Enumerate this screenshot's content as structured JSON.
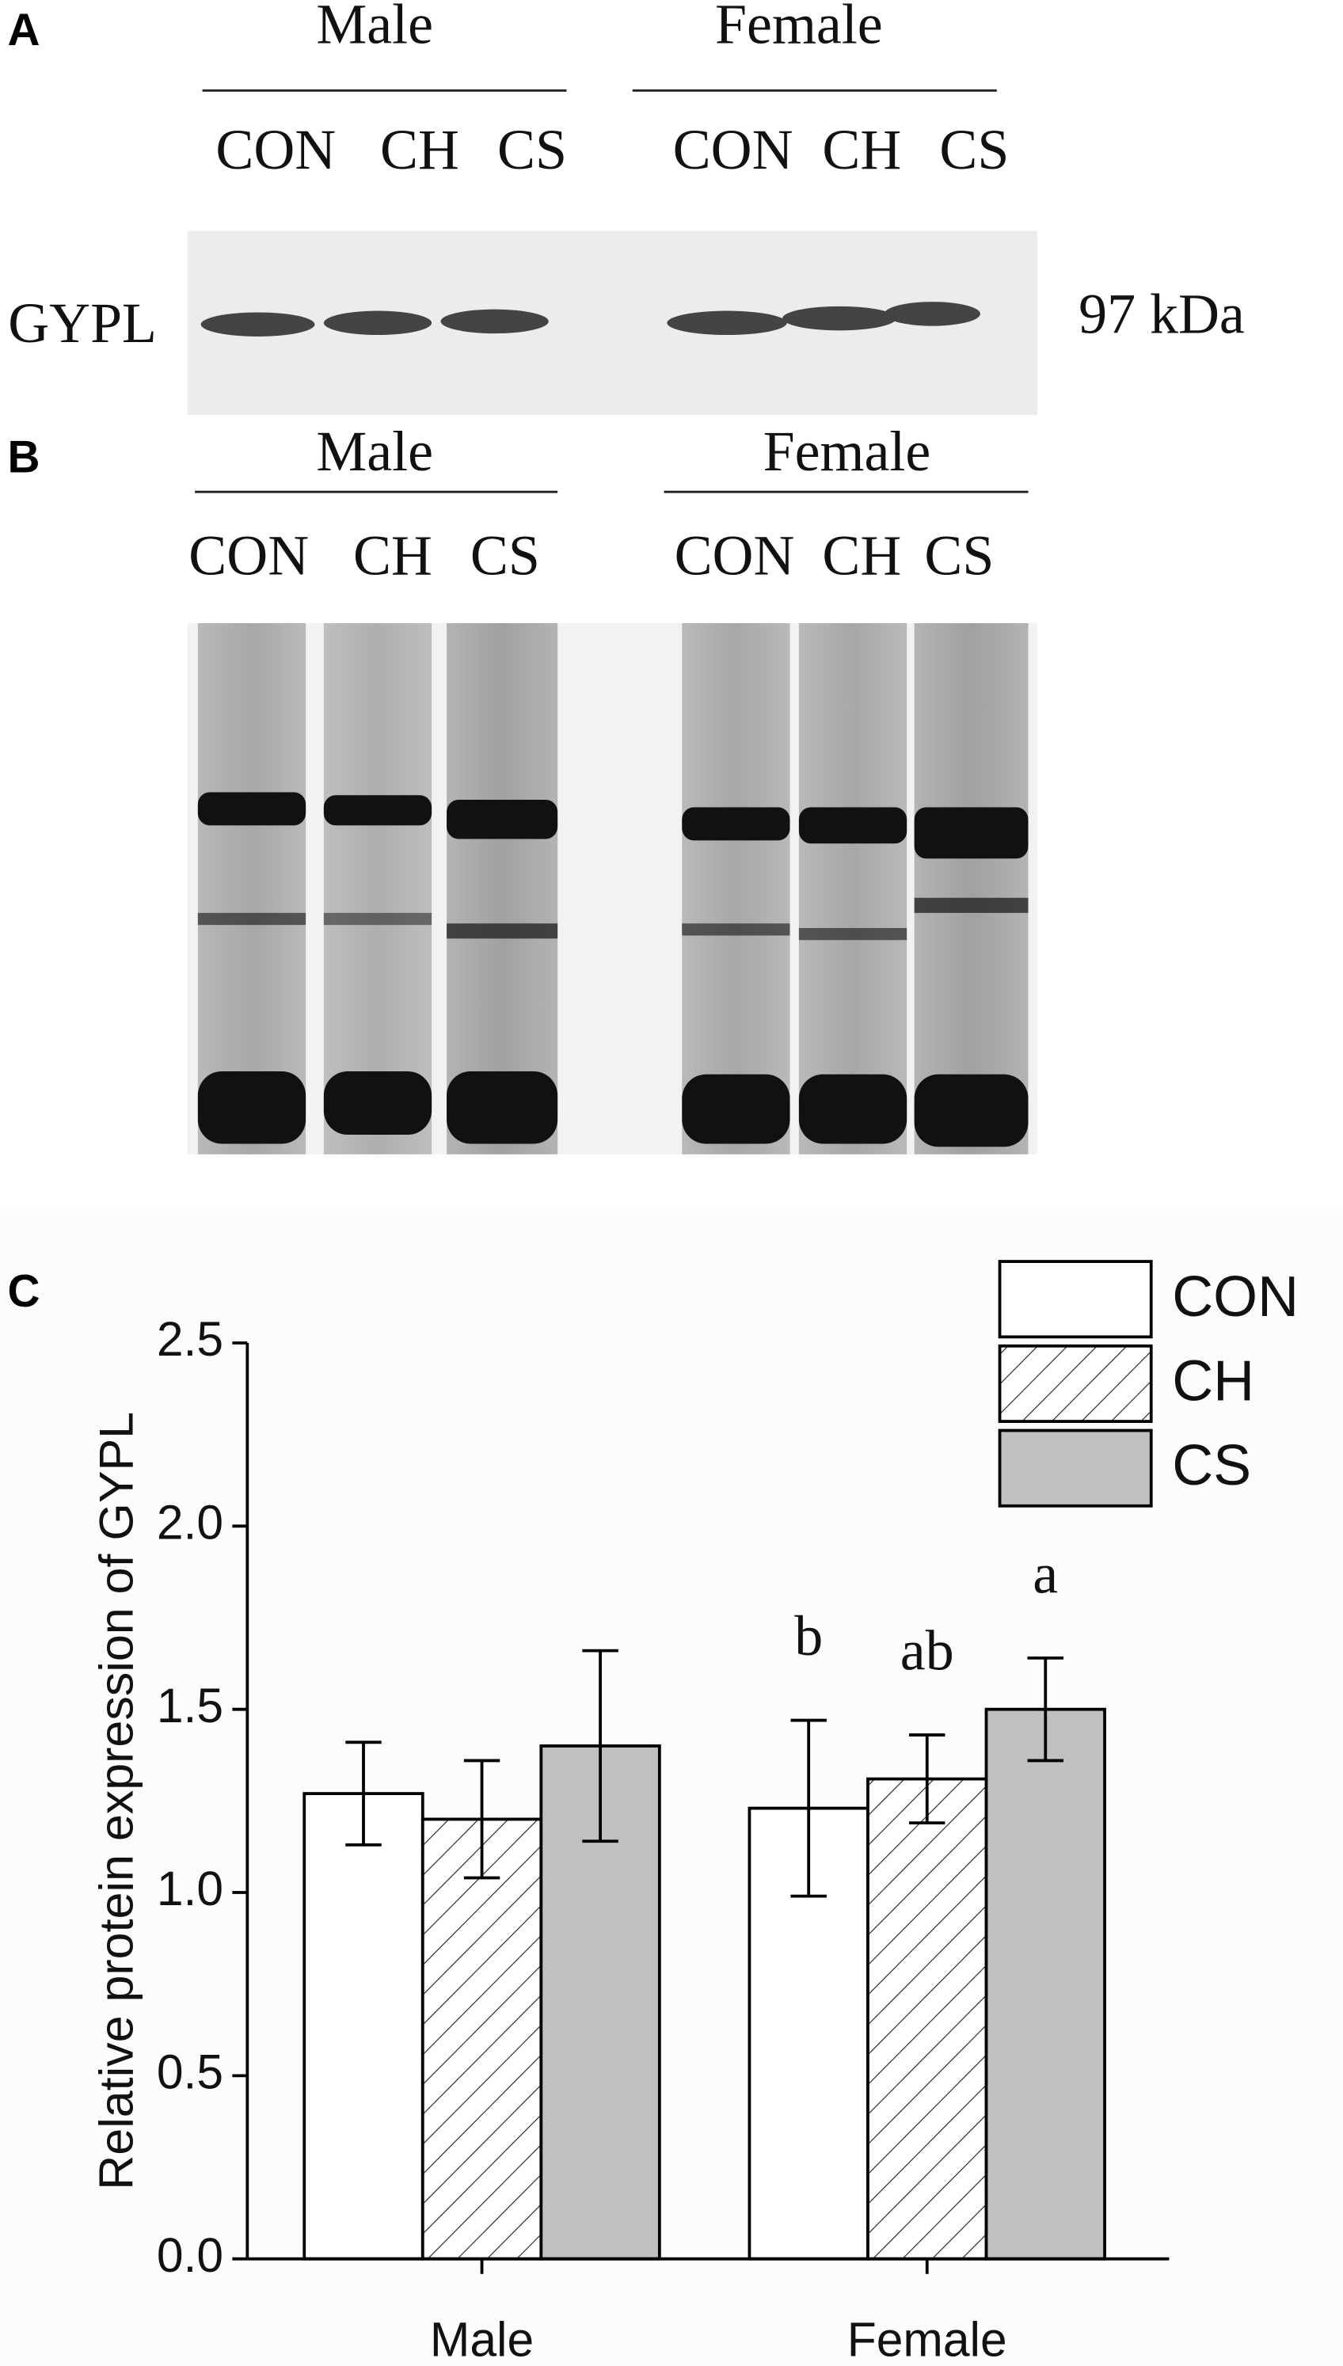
{
  "panels": {
    "a": {
      "label": "A",
      "groups": [
        "Male",
        "Female"
      ],
      "lanes": [
        "CON",
        "CH",
        "CS",
        "CON",
        "CH",
        "CS"
      ],
      "protein": "GYPL",
      "size": "97 kDa"
    },
    "b": {
      "label": "B",
      "groups": [
        "Male",
        "Female"
      ],
      "lanes": [
        "CON",
        "CH",
        "CS",
        "CON",
        "CH",
        "CS"
      ]
    }
  },
  "chart_data": {
    "type": "bar",
    "panel_label": "C",
    "y_label": "Relative protein expression of GYPL",
    "categories": [
      "Male",
      "Female"
    ],
    "series": [
      {
        "name": "CON",
        "color": "#ffffff",
        "values": [
          1.27,
          1.23
        ],
        "errors": [
          0.14,
          0.24
        ],
        "letters": [
          null,
          "b"
        ]
      },
      {
        "name": "CH",
        "color": "#ffffff",
        "pattern": "hatch",
        "values": [
          1.2,
          1.31
        ],
        "errors": [
          0.16,
          0.12
        ],
        "letters": [
          null,
          "ab"
        ]
      },
      {
        "name": "CS",
        "color": "#c0c0c0",
        "values": [
          1.4,
          1.5
        ],
        "errors": [
          0.26,
          0.14
        ],
        "letters": [
          null,
          "a"
        ]
      }
    ],
    "ylim": [
      0,
      2.5
    ],
    "yticks": [
      {
        "value": 0,
        "label": "0.0"
      },
      0.5,
      {
        "value": 1,
        "label": "1.0"
      },
      1.5,
      {
        "value": 2,
        "label": "2.0"
      },
      2.5
    ],
    "legend": "upper right"
  }
}
